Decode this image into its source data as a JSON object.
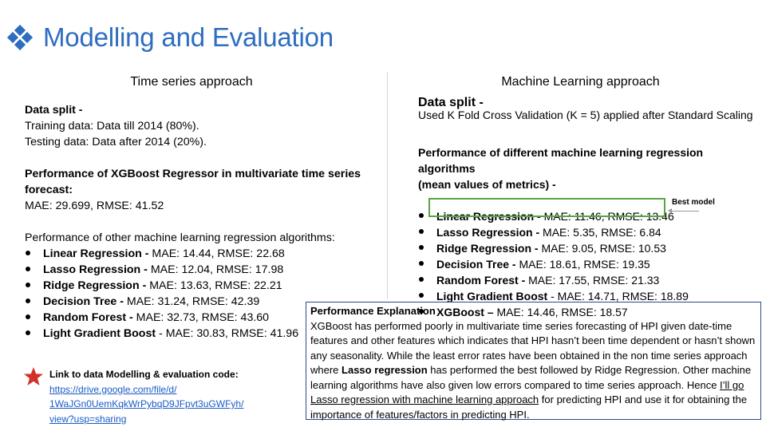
{
  "slide": {
    "title": "Modelling and Evaluation",
    "title_color": "#2e6dbf"
  },
  "left": {
    "heading": "Time series approach",
    "data_split_label": "Data split -",
    "training": "Training data: Data till 2014 (80%).",
    "testing": "Testing data: Data after 2014 (20%).",
    "xgb_title_1": "Performance of XGBoost Regressor in multivariate time series",
    "xgb_title_2": "forecast:",
    "xgb_metrics": "MAE: 29.699, RMSE: 41.52",
    "other_title": "Performance of other machine learning regression algorithms:",
    "algorithms": [
      {
        "name": "Linear Regression -",
        "metrics": " MAE: 14.44, RMSE: 22.68"
      },
      {
        "name": "Lasso Regression -",
        "metrics": " MAE: 12.04, RMSE: 17.98"
      },
      {
        "name": "Ridge Regression -",
        "metrics": " MAE: 13.63, RMSE: 22.21"
      },
      {
        "name": "Decision Tree -",
        "metrics": " MAE: 31.24, RMSE: 42.39"
      },
      {
        "name": "Random Forest -",
        "metrics": " MAE: 32.73, RMSE: 43.60"
      },
      {
        "name": "Light Gradient Boost",
        "metrics": " - MAE: 30.83, RMSE: 41.96"
      }
    ]
  },
  "right": {
    "heading": "Machine Learning approach",
    "data_split_label": "Data split -",
    "cv_text": "Used K Fold Cross Validation (K = 5) applied after Standard Scaling",
    "perf_title_1": "Performance of different machine learning regression algorithms",
    "perf_title_2": "(mean values of metrics) -",
    "algorithms": [
      {
        "name": "Linear Regression -",
        "metrics": " MAE: 11.46, RMSE: 13.46"
      },
      {
        "name": "Lasso Regression -",
        "metrics": " MAE: 5.35, RMSE: 6.84"
      },
      {
        "name": "Ridge Regression -",
        "metrics": " MAE: 9.05, RMSE: 10.53"
      },
      {
        "name": "Decision Tree -",
        "metrics": " MAE: 18.61, RMSE: 19.35"
      },
      {
        "name": "Random Forest -",
        "metrics": " MAE: 17.55, RMSE: 21.33"
      },
      {
        "name": "Light Gradient Boost",
        "metrics": " - MAE: 14.71, RMSE: 18.89"
      },
      {
        "name": "XGBoost –",
        "metrics": " MAE: 14.46, RMSE: 18.57"
      }
    ],
    "best_label": "Best model",
    "highlight_color": "#5aa540"
  },
  "link": {
    "title": "Link to data Modelling & evaluation code:",
    "url_lines": [
      "https://drive.google.com/file/d/",
      "1WaJGn0UemKqkWrPybqD9JFpvt3uGWFyh/",
      "view?usp=sharing"
    ],
    "star_color": "#d2312a"
  },
  "explanation": {
    "title": "Performance Explanation",
    "title_suffix": " -",
    "p1": "XGBoost has performed poorly in multivariate time series forecasting of HPI given date-time features and other features which indicates that HPI hasn’t been time dependent or hasn’t shown any seasonality. While the least error rates have been obtained in the non time series approach where ",
    "p1_bold": "Lasso regression",
    "p1_end": " has performed the best followed by Ridge Regression. Other machine learning algorithms have also given low errors compared to time series approach. Hence  ",
    "p1_underlined": "I’ll go Lasso regression with machine learning approach",
    "p1_tail": " for predicting HPI and use it for obtaining the importance of features/factors in  predicting HPI."
  }
}
